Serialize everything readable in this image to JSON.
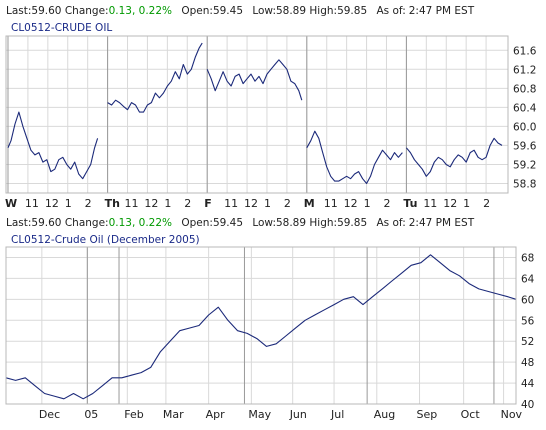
{
  "colors": {
    "background": "#ffffff",
    "plot_background": "#ffffff",
    "grid": "#d9d9d9",
    "session_divider": "#999999",
    "line": "#1c2a7a",
    "change_positive": "#009900",
    "title_text": "#1a2a88",
    "label_text": "#222222"
  },
  "chart_data": [
    {
      "type": "line",
      "title": "CL0512-CRUDE OIL",
      "quote": {
        "last_label": "Last:",
        "last": "59.60",
        "change_label": "Change:",
        "change": "0.13, 0.22%",
        "open_label": "Open:",
        "open": "59.45",
        "low_label": "Low:",
        "low": "58.89",
        "high_label": "High:",
        "high": "59.85",
        "asof_label": "As of:",
        "asof": "2:47 PM EST"
      },
      "x_unit": "trading hour (ET), 5 sessions",
      "x_tick_labels": [
        {
          "x": 0,
          "label": "W",
          "bold": true
        },
        {
          "x": 1,
          "label": "11"
        },
        {
          "x": 2,
          "label": "12"
        },
        {
          "x": 3,
          "label": "1"
        },
        {
          "x": 4,
          "label": "2"
        },
        {
          "x": 5,
          "label": "Th",
          "bold": true
        },
        {
          "x": 6,
          "label": "11"
        },
        {
          "x": 7,
          "label": "12"
        },
        {
          "x": 8,
          "label": "1"
        },
        {
          "x": 9,
          "label": "2"
        },
        {
          "x": 10,
          "label": "F",
          "bold": true
        },
        {
          "x": 11,
          "label": "11"
        },
        {
          "x": 12,
          "label": "12"
        },
        {
          "x": 13,
          "label": "1"
        },
        {
          "x": 14,
          "label": "2"
        },
        {
          "x": 15,
          "label": "M",
          "bold": true
        },
        {
          "x": 16,
          "label": "11"
        },
        {
          "x": 17,
          "label": "12"
        },
        {
          "x": 18,
          "label": "1"
        },
        {
          "x": 19,
          "label": "2"
        },
        {
          "x": 20,
          "label": "Tu",
          "bold": true
        },
        {
          "x": 21,
          "label": "11"
        },
        {
          "x": 22,
          "label": "12"
        },
        {
          "x": 23,
          "label": "1"
        },
        {
          "x": 24,
          "label": "2"
        }
      ],
      "session_starts": [
        0,
        5,
        10,
        15,
        20
      ],
      "xlim": [
        -0.1,
        25.1
      ],
      "yticks": [
        58.8,
        59.2,
        59.6,
        60.0,
        60.4,
        60.8,
        61.2,
        61.6
      ],
      "ytick_labels": [
        "58.8",
        "59.2",
        "59.6",
        "60.0",
        "60.4",
        "60.8",
        "61.2",
        "61.6"
      ],
      "ylim": [
        58.6,
        61.9
      ],
      "grid": true,
      "series": [
        {
          "x": [
            0,
            0.15,
            0.35,
            0.55,
            0.75,
            0.95,
            1.15,
            1.35,
            1.55,
            1.75,
            1.95,
            2.15,
            2.35,
            2.55,
            2.75,
            2.95,
            3.15,
            3.35,
            3.55,
            3.75,
            3.95,
            4.15,
            4.35,
            4.5
          ],
          "y": [
            59.55,
            59.7,
            60.05,
            60.3,
            60.0,
            59.75,
            59.5,
            59.4,
            59.45,
            59.25,
            59.3,
            59.05,
            59.1,
            59.3,
            59.35,
            59.2,
            59.1,
            59.25,
            59.0,
            58.9,
            59.05,
            59.2,
            59.55,
            59.75
          ]
        },
        {
          "x": [
            5.0,
            5.2,
            5.4,
            5.6,
            5.8,
            6.0,
            6.2,
            6.4,
            6.6,
            6.8,
            7.0,
            7.2,
            7.4,
            7.6,
            7.8,
            8.0,
            8.2,
            8.4,
            8.6,
            8.8,
            9.0,
            9.2,
            9.4,
            9.6,
            9.75
          ],
          "y": [
            60.5,
            60.45,
            60.55,
            60.5,
            60.42,
            60.35,
            60.5,
            60.45,
            60.3,
            60.3,
            60.45,
            60.5,
            60.7,
            60.6,
            60.7,
            60.85,
            60.95,
            61.15,
            61.0,
            61.3,
            61.1,
            61.2,
            61.45,
            61.65,
            61.75
          ]
        },
        {
          "x": [
            10.0,
            10.2,
            10.4,
            10.6,
            10.8,
            11.0,
            11.2,
            11.4,
            11.6,
            11.8,
            12.0,
            12.2,
            12.4,
            12.6,
            12.8,
            13.0,
            13.2,
            13.4,
            13.6,
            13.8,
            14.0,
            14.2,
            14.4,
            14.6,
            14.75
          ],
          "y": [
            61.2,
            61.0,
            60.75,
            60.95,
            61.15,
            60.95,
            60.85,
            61.05,
            61.1,
            60.9,
            61.0,
            61.1,
            60.95,
            61.05,
            60.9,
            61.1,
            61.2,
            61.3,
            61.4,
            61.3,
            61.2,
            60.95,
            60.9,
            60.75,
            60.55
          ]
        },
        {
          "x": [
            15.0,
            15.2,
            15.4,
            15.6,
            15.8,
            16.0,
            16.2,
            16.4,
            16.6,
            16.8,
            17.0,
            17.2,
            17.4,
            17.6,
            17.8,
            18.0,
            18.2,
            18.4,
            18.6,
            18.8,
            19.0,
            19.2,
            19.4,
            19.6,
            19.8
          ],
          "y": [
            59.55,
            59.7,
            59.9,
            59.75,
            59.45,
            59.15,
            58.95,
            58.85,
            58.85,
            58.9,
            58.95,
            58.9,
            59.0,
            59.05,
            58.9,
            58.8,
            58.95,
            59.2,
            59.35,
            59.5,
            59.4,
            59.3,
            59.45,
            59.35,
            59.45
          ]
        },
        {
          "x": [
            20.0,
            20.2,
            20.4,
            20.6,
            20.8,
            21.0,
            21.2,
            21.4,
            21.6,
            21.8,
            22.0,
            22.2,
            22.4,
            22.6,
            22.8,
            23.0,
            23.2,
            23.4,
            23.6,
            23.8,
            24.0,
            24.2,
            24.4,
            24.6,
            24.8
          ],
          "y": [
            59.55,
            59.45,
            59.3,
            59.2,
            59.1,
            58.95,
            59.05,
            59.25,
            59.35,
            59.3,
            59.2,
            59.15,
            59.3,
            59.4,
            59.35,
            59.25,
            59.45,
            59.5,
            59.35,
            59.3,
            59.35,
            59.6,
            59.75,
            59.65,
            59.6
          ]
        }
      ]
    },
    {
      "type": "line",
      "title": "CL0512-Crude Oil (December 2005)",
      "quote": {
        "last_label": "Last:",
        "last": "59.60",
        "change_label": "Change:",
        "change": "0.13, 0.22%",
        "open_label": "Open:",
        "open": "59.45",
        "low_label": "Low:",
        "low": "58.89",
        "high_label": "High:",
        "high": "59.85",
        "asof_label": "As of:",
        "asof": "2:47 PM EST"
      },
      "x_unit": "date, Nov 2004 – Nov 2005",
      "x_tick_labels": [
        {
          "x": "2004-12-01",
          "label": "Dec"
        },
        {
          "x": "2005-01-03",
          "label": "05"
        },
        {
          "x": "2005-02-01",
          "label": "Feb"
        },
        {
          "x": "2005-03-01",
          "label": "Mar"
        },
        {
          "x": "2005-04-01",
          "label": "Apr"
        },
        {
          "x": "2005-05-02",
          "label": "May"
        },
        {
          "x": "2005-06-01",
          "label": "Jun"
        },
        {
          "x": "2005-07-01",
          "label": "Jul"
        },
        {
          "x": "2005-08-01",
          "label": "Aug"
        },
        {
          "x": "2005-09-01",
          "label": "Sep"
        },
        {
          "x": "2005-10-03",
          "label": "Oct"
        },
        {
          "x": "2005-11-01",
          "label": "Nov"
        }
      ],
      "year_divider": "2005-01-03",
      "quarter_dividers": [
        "2005-01-26",
        "2005-04-27",
        "2005-07-25",
        "2005-10-25"
      ],
      "xlim": [
        "2004-11-05",
        "2005-11-10"
      ],
      "yticks": [
        40,
        44,
        48,
        52,
        56,
        60,
        64,
        68
      ],
      "ytick_labels": [
        "40",
        "44",
        "48",
        "52",
        "56",
        "60",
        "64",
        "68"
      ],
      "ylim": [
        40,
        70
      ],
      "grid": true,
      "series": [
        {
          "x": [
            "2004-11-05",
            "2004-11-12",
            "2004-11-19",
            "2004-11-26",
            "2004-12-03",
            "2004-12-10",
            "2004-12-17",
            "2004-12-24",
            "2004-12-31",
            "2005-01-07",
            "2005-01-14",
            "2005-01-21",
            "2005-01-28",
            "2005-02-04",
            "2005-02-11",
            "2005-02-18",
            "2005-02-25",
            "2005-03-04",
            "2005-03-11",
            "2005-03-18",
            "2005-03-25",
            "2005-04-01",
            "2005-04-08",
            "2005-04-15",
            "2005-04-22",
            "2005-04-29",
            "2005-05-06",
            "2005-05-13",
            "2005-05-20",
            "2005-05-27",
            "2005-06-03",
            "2005-06-10",
            "2005-06-17",
            "2005-06-24",
            "2005-07-01",
            "2005-07-08",
            "2005-07-15",
            "2005-07-22",
            "2005-07-29",
            "2005-08-05",
            "2005-08-12",
            "2005-08-19",
            "2005-08-26",
            "2005-09-02",
            "2005-09-09",
            "2005-09-16",
            "2005-09-23",
            "2005-09-30",
            "2005-10-07",
            "2005-10-14",
            "2005-10-21",
            "2005-10-28",
            "2005-11-04",
            "2005-11-10"
          ],
          "y": [
            45.0,
            44.5,
            45.0,
            43.5,
            42.0,
            41.5,
            41.0,
            42.0,
            41.0,
            42.0,
            43.5,
            45.0,
            45.0,
            45.5,
            46.0,
            47.0,
            50.0,
            52.0,
            54.0,
            54.5,
            55.0,
            57.0,
            58.5,
            56.0,
            54.0,
            53.5,
            52.5,
            51.0,
            51.5,
            53.0,
            54.5,
            56.0,
            57.0,
            58.0,
            59.0,
            60.0,
            60.5,
            59.0,
            60.5,
            62.0,
            63.5,
            65.0,
            66.5,
            67.0,
            68.5,
            67.0,
            65.5,
            64.5,
            63.0,
            62.0,
            61.5,
            61.0,
            60.5,
            60.0
          ]
        }
      ]
    }
  ]
}
